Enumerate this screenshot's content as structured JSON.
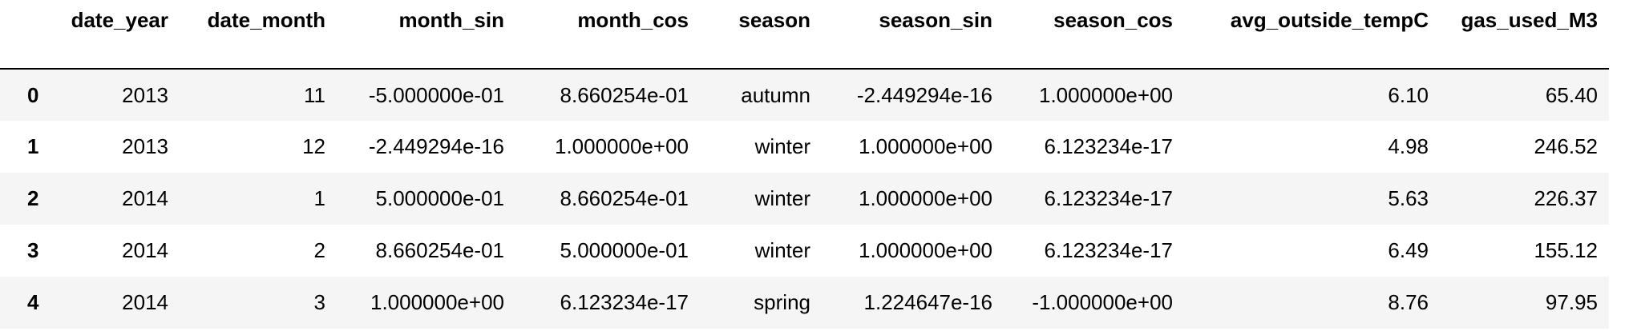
{
  "table": {
    "columns": [
      "date_year",
      "date_month",
      "month_sin",
      "month_cos",
      "season",
      "season_sin",
      "season_cos",
      "avg_outside_tempC",
      "gas_used_M3"
    ],
    "rows": [
      {
        "index": "0",
        "cells": [
          "2013",
          "11",
          "-5.000000e-01",
          "8.660254e-01",
          "autumn",
          "-2.449294e-16",
          "1.000000e+00",
          "6.10",
          "65.40"
        ]
      },
      {
        "index": "1",
        "cells": [
          "2013",
          "12",
          "-2.449294e-16",
          "1.000000e+00",
          "winter",
          "1.000000e+00",
          "6.123234e-17",
          "4.98",
          "246.52"
        ]
      },
      {
        "index": "2",
        "cells": [
          "2014",
          "1",
          "5.000000e-01",
          "8.660254e-01",
          "winter",
          "1.000000e+00",
          "6.123234e-17",
          "5.63",
          "226.37"
        ]
      },
      {
        "index": "3",
        "cells": [
          "2014",
          "2",
          "8.660254e-01",
          "5.000000e-01",
          "winter",
          "1.000000e+00",
          "6.123234e-17",
          "6.49",
          "155.12"
        ]
      },
      {
        "index": "4",
        "cells": [
          "2014",
          "3",
          "1.000000e+00",
          "6.123234e-17",
          "spring",
          "1.224647e-16",
          "-1.000000e+00",
          "8.76",
          "97.95"
        ]
      }
    ]
  }
}
